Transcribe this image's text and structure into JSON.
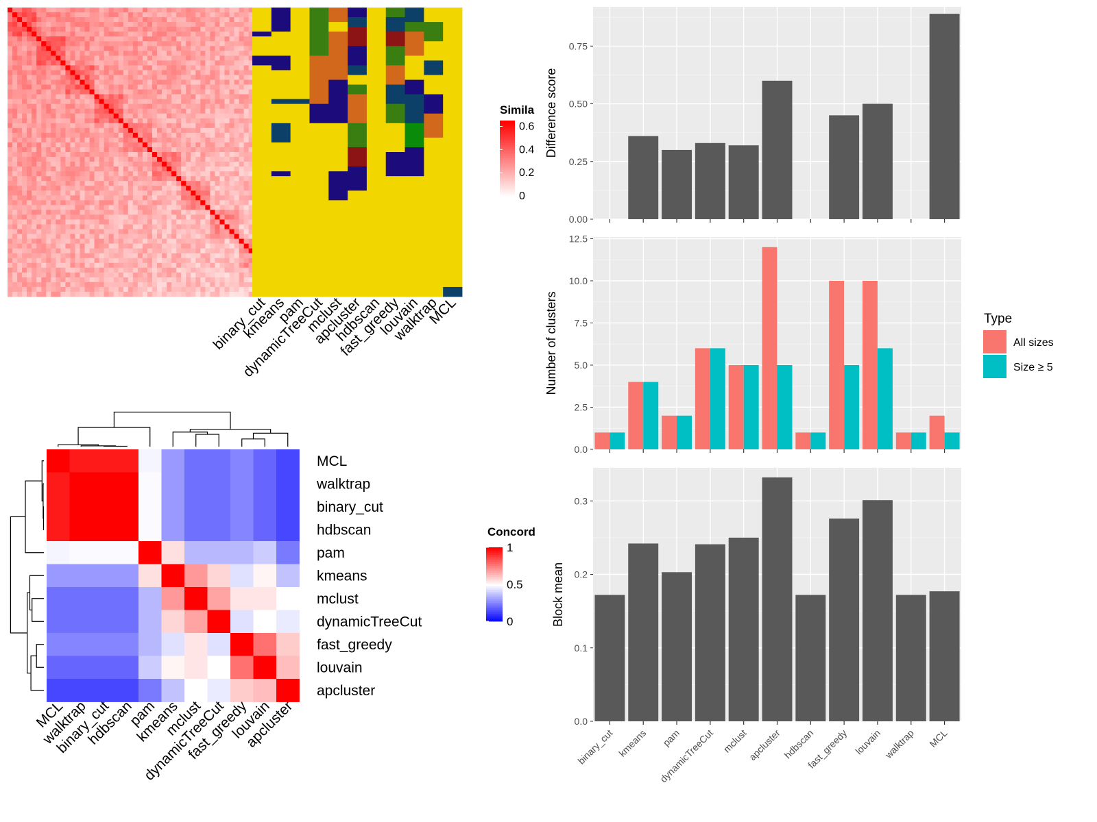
{
  "similarity_panel": {
    "legend_title": "Simila",
    "legend_ticks": [
      "0.6",
      "0.4",
      "0.2",
      "0"
    ],
    "legend_tick_values": [
      0.6,
      0.4,
      0.2,
      0
    ],
    "max_value": 0.65,
    "colors": {
      "low": "#ffffff",
      "high": "#ff0000"
    },
    "methods": [
      "binary_cut",
      "kmeans",
      "pam",
      "dynamicTreeCut",
      "mclust",
      "apcluster",
      "hdbscan",
      "fast_greedy",
      "louvain",
      "walktrap",
      "MCL"
    ],
    "cluster_palette": [
      "#f2d600",
      "#1c0b7a",
      "#0d4068",
      "#3a7e12",
      "#d2681b",
      "#8c1414",
      "#d31d9a",
      "#0a8c0a"
    ]
  },
  "concordance_panel": {
    "legend_title": "Concord",
    "legend_ticks": [
      "1",
      "0.5",
      "0"
    ],
    "legend_tick_values": [
      1,
      0.5,
      0
    ],
    "colors": {
      "low": "#0000ff",
      "mid": "#ffffff",
      "high": "#ff0000"
    },
    "order": [
      "MCL",
      "walktrap",
      "binary_cut",
      "hdbscan",
      "pam",
      "kmeans",
      "mclust",
      "dynamicTreeCut",
      "fast_greedy",
      "louvain",
      "apcluster"
    ],
    "matrix": [
      [
        1.0,
        0.95,
        0.95,
        0.95,
        0.48,
        0.3,
        0.22,
        0.22,
        0.26,
        0.2,
        0.14
      ],
      [
        0.95,
        1.0,
        1.0,
        1.0,
        0.49,
        0.3,
        0.22,
        0.22,
        0.26,
        0.2,
        0.14
      ],
      [
        0.95,
        1.0,
        1.0,
        1.0,
        0.49,
        0.3,
        0.22,
        0.22,
        0.26,
        0.2,
        0.14
      ],
      [
        0.95,
        1.0,
        1.0,
        1.0,
        0.49,
        0.3,
        0.22,
        0.22,
        0.26,
        0.2,
        0.14
      ],
      [
        0.48,
        0.49,
        0.49,
        0.49,
        1.0,
        0.56,
        0.36,
        0.36,
        0.36,
        0.4,
        0.24
      ],
      [
        0.3,
        0.3,
        0.3,
        0.3,
        0.56,
        1.0,
        0.7,
        0.58,
        0.44,
        0.52,
        0.38
      ],
      [
        0.22,
        0.22,
        0.22,
        0.22,
        0.36,
        0.7,
        1.0,
        0.68,
        0.55,
        0.55,
        0.5
      ],
      [
        0.22,
        0.22,
        0.22,
        0.22,
        0.36,
        0.58,
        0.68,
        1.0,
        0.44,
        0.5,
        0.46
      ],
      [
        0.26,
        0.26,
        0.26,
        0.26,
        0.36,
        0.44,
        0.55,
        0.44,
        1.0,
        0.78,
        0.6
      ],
      [
        0.2,
        0.2,
        0.2,
        0.2,
        0.4,
        0.52,
        0.55,
        0.5,
        0.78,
        1.0,
        0.63
      ],
      [
        0.14,
        0.14,
        0.14,
        0.14,
        0.24,
        0.38,
        0.5,
        0.46,
        0.6,
        0.63,
        1.0
      ]
    ]
  },
  "chart_data": [
    {
      "type": "bar",
      "categories": [
        "binary_cut",
        "kmeans",
        "pam",
        "dynamicTreeCut",
        "mclust",
        "apcluster",
        "hdbscan",
        "fast_greedy",
        "louvain",
        "walktrap",
        "MCL"
      ],
      "values": [
        0,
        0.36,
        0.3,
        0.33,
        0.32,
        0.6,
        0,
        0.45,
        0.5,
        0,
        0.89
      ],
      "ylabel": "Difference score",
      "ylim": [
        0,
        0.92
      ],
      "yticks": [
        0,
        0.25,
        0.5,
        0.75
      ],
      "ytick_labels": [
        "0.00",
        "0.25",
        "0.50",
        "0.75"
      ],
      "grid": true,
      "bar_color": "#595959"
    },
    {
      "type": "bar",
      "categories": [
        "binary_cut",
        "kmeans",
        "pam",
        "dynamicTreeCut",
        "mclust",
        "apcluster",
        "hdbscan",
        "fast_greedy",
        "louvain",
        "walktrap",
        "MCL"
      ],
      "series": [
        {
          "name": "All sizes",
          "values": [
            1,
            4,
            2,
            6,
            5,
            12,
            1,
            10,
            10,
            1,
            2
          ],
          "color": "#f8766d"
        },
        {
          "name": "Size ≥ 5",
          "values": [
            1,
            4,
            2,
            6,
            5,
            5,
            1,
            5,
            6,
            1,
            1
          ],
          "color": "#00bfc4"
        }
      ],
      "ylabel": "Number of clusters",
      "ylim": [
        0,
        12.6
      ],
      "yticks": [
        0,
        2.5,
        5,
        7.5,
        10,
        12.5
      ],
      "ytick_labels": [
        "0.0",
        "2.5",
        "5.0",
        "7.5",
        "10.0",
        "12.5"
      ],
      "legend_title": "Type",
      "legend_position": "right",
      "grid": true
    },
    {
      "type": "bar",
      "categories": [
        "binary_cut",
        "kmeans",
        "pam",
        "dynamicTreeCut",
        "mclust",
        "apcluster",
        "hdbscan",
        "fast_greedy",
        "louvain",
        "walktrap",
        "MCL"
      ],
      "values": [
        0.172,
        0.242,
        0.203,
        0.241,
        0.25,
        0.332,
        0.172,
        0.276,
        0.301,
        0.172,
        0.177
      ],
      "ylabel": "Block mean",
      "ylim": [
        0,
        0.345
      ],
      "yticks": [
        0,
        0.1,
        0.2,
        0.3
      ],
      "ytick_labels": [
        "0.0",
        "0.1",
        "0.2",
        "0.3"
      ],
      "grid": true,
      "bar_color": "#595959"
    }
  ]
}
